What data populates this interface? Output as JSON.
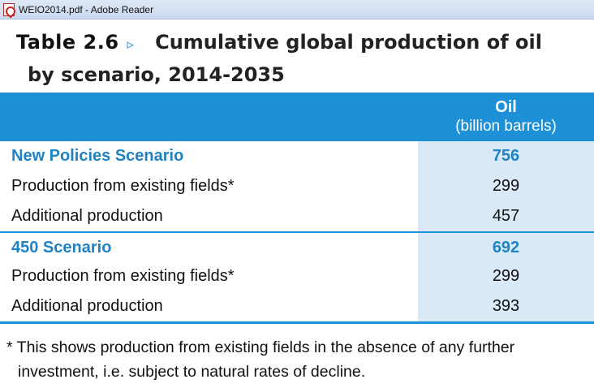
{
  "window": {
    "title": "WEIO2014.pdf - Adobe Reader",
    "icon": "pdf-icon"
  },
  "heading": {
    "table_number": "Table 2.6",
    "marker": "▹",
    "line1": "Cumulative global production of oil",
    "line2": "by scenario, 2014-2035"
  },
  "table": {
    "column_header": "Oil",
    "column_unit": "(billion barrels)",
    "rows": [
      {
        "label": "New Policies Scenario",
        "value": "756"
      },
      {
        "label": "Production from existing fields*",
        "value": "299"
      },
      {
        "label": "Additional production",
        "value": "457"
      },
      {
        "label": "450 Scenario",
        "value": "692"
      },
      {
        "label": "Production from existing fields*",
        "value": "299"
      },
      {
        "label": "Additional production",
        "value": "393"
      }
    ]
  },
  "footnote": {
    "line1": "* This shows production from existing fields in the absence of any further",
    "line2": "investment, i.e. subject to natural rates of decline."
  },
  "colors": {
    "accent": "#1e90d8",
    "scenario_text": "#1f82c4",
    "value_column_bg": "#d9e9f8"
  }
}
